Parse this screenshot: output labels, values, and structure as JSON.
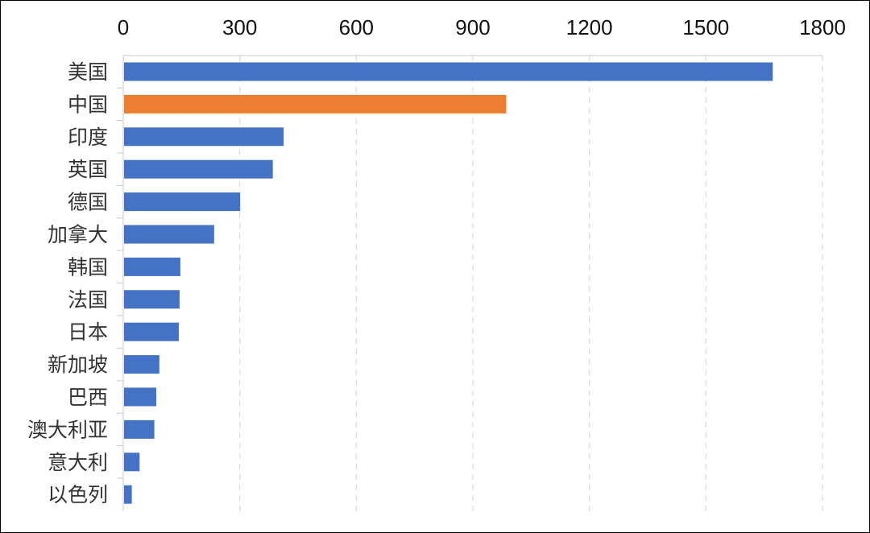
{
  "chart_data": {
    "type": "bar",
    "orientation": "horizontal",
    "categories": [
      "美国",
      "中国",
      "印度",
      "英国",
      "德国",
      "加拿大",
      "韩国",
      "法国",
      "日本",
      "新加坡",
      "巴西",
      "澳大利亚",
      "意大利",
      "以色列"
    ],
    "values": [
      1672,
      986,
      413,
      385,
      301,
      234,
      147,
      145,
      143,
      93,
      85,
      80,
      42,
      22
    ],
    "highlight_category": "中国",
    "colors": {
      "default": "#4472C4",
      "highlight": "#ED7D31"
    },
    "xlim": [
      0,
      1800
    ],
    "xticks": [
      0,
      300,
      600,
      900,
      1200,
      1500,
      1800
    ],
    "x_axis_position": "top",
    "grid": "vertical-dashed",
    "title": "",
    "xlabel": "",
    "ylabel": ""
  }
}
